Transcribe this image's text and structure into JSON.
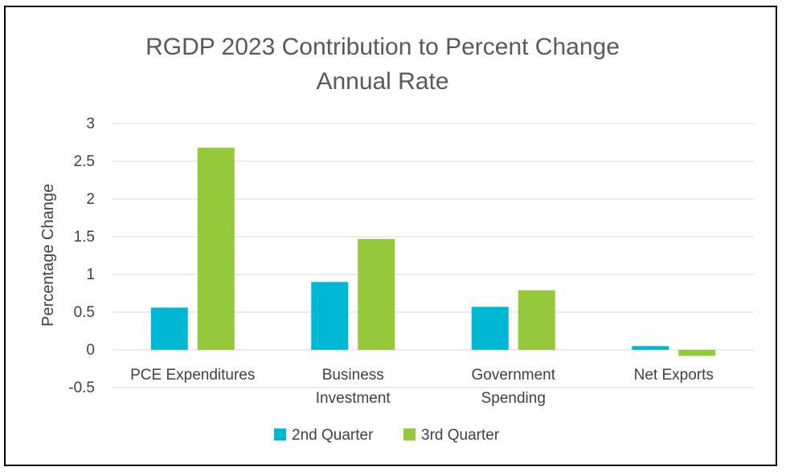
{
  "chart_data": {
    "type": "bar",
    "title": "RGDP 2023 Contribution to Percent Change",
    "subtitle": "Annual Rate",
    "xlabel": "",
    "ylabel": "Percentage Change",
    "categories": [
      [
        "PCE Expenditures"
      ],
      [
        "Business",
        "Investment"
      ],
      [
        "Government",
        "Spending"
      ],
      [
        "Net Exports"
      ]
    ],
    "series": [
      {
        "name": "2nd Quarter",
        "color": "#00b8d4",
        "values": [
          0.56,
          0.9,
          0.57,
          0.05
        ]
      },
      {
        "name": "3rd Quarter",
        "color": "#96c83c",
        "values": [
          2.68,
          1.47,
          0.79,
          -0.08
        ]
      }
    ],
    "ylim": [
      -0.5,
      3
    ],
    "yticks": [
      "-0.5",
      "0",
      "0.5",
      "1",
      "1.5",
      "2",
      "2.5",
      "3"
    ],
    "ytick_values": [
      -0.5,
      0,
      0.5,
      1,
      1.5,
      2,
      2.5,
      3
    ],
    "grid": true,
    "legend_position": "bottom"
  }
}
